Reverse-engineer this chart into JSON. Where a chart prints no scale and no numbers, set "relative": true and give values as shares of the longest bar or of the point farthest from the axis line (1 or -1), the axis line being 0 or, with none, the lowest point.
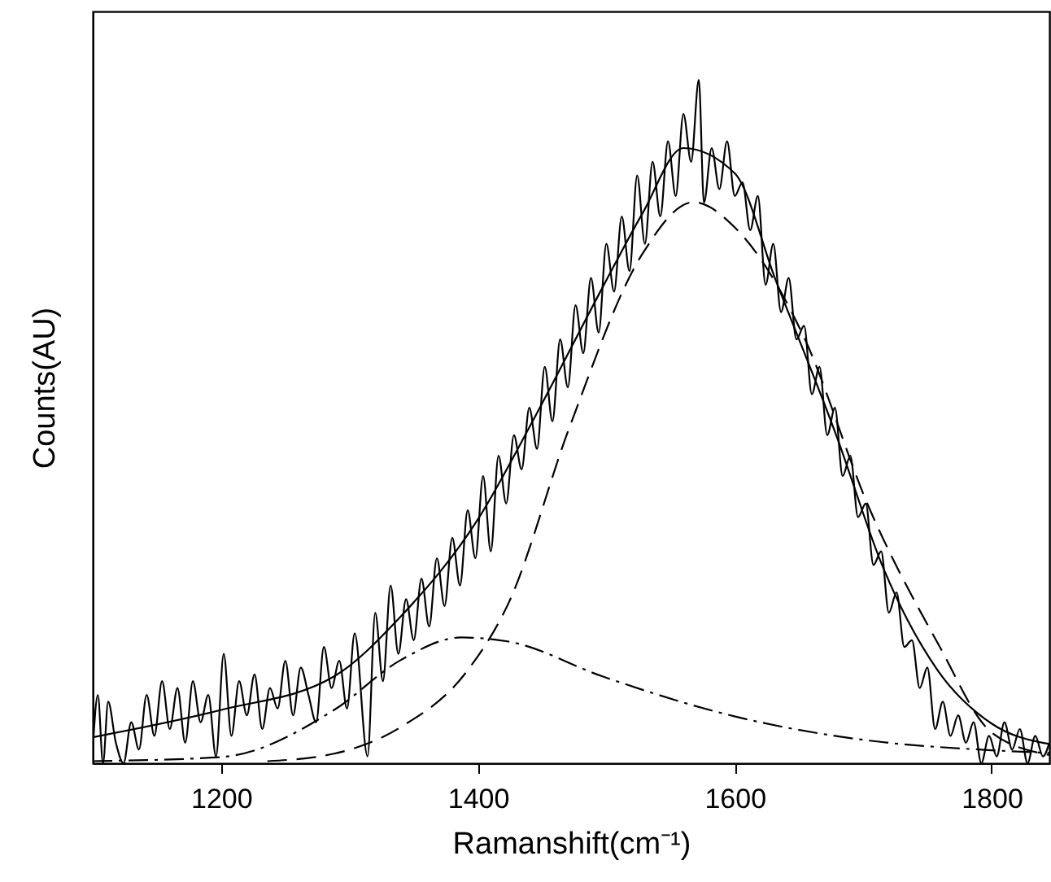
{
  "chart_data": {
    "type": "line",
    "relative": true,
    "xlabel": "Ramanshift(cm⁻¹)",
    "ylabel": "Counts(AU)",
    "xlim": [
      1100,
      1845
    ],
    "xticks": [
      1200,
      1400,
      1600,
      1800
    ],
    "grid": false,
    "marker": "none",
    "tick_labels": "x",
    "series": [
      {
        "color": "#000000",
        "line_style": "solid",
        "x": [
          1100,
          1104,
          1108,
          1112,
          1118,
          1124,
          1130,
          1136,
          1142,
          1148,
          1154,
          1160,
          1166,
          1172,
          1178,
          1184,
          1190,
          1196,
          1202,
          1208,
          1214,
          1220,
          1226,
          1232,
          1238,
          1244,
          1250,
          1256,
          1262,
          1268,
          1274,
          1280,
          1286,
          1292,
          1298,
          1304,
          1314,
          1320,
          1326,
          1332,
          1338,
          1344,
          1350,
          1356,
          1362,
          1368,
          1374,
          1380,
          1386,
          1392,
          1398,
          1404,
          1410,
          1416,
          1422,
          1428,
          1434,
          1440,
          1446,
          1452,
          1458,
          1464,
          1470,
          1476,
          1482,
          1488,
          1494,
          1500,
          1506,
          1512,
          1518,
          1524,
          1530,
          1536,
          1542,
          1548,
          1554,
          1560,
          1566,
          1572,
          1576,
          1582,
          1588,
          1594,
          1600,
          1606,
          1612,
          1618,
          1624,
          1630,
          1636,
          1642,
          1648,
          1654,
          1660,
          1666,
          1672,
          1678,
          1684,
          1690,
          1696,
          1702,
          1708,
          1714,
          1720,
          1726,
          1732,
          1738,
          1744,
          1750,
          1756,
          1762,
          1768,
          1774,
          1780,
          1786,
          1792,
          1798,
          1804,
          1810,
          1816,
          1822,
          1828,
          1834,
          1840,
          1845
        ],
        "values": [
          0.02,
          0.1,
          0.0,
          0.09,
          0.03,
          0.0,
          0.06,
          0.02,
          0.1,
          0.04,
          0.12,
          0.05,
          0.11,
          0.03,
          0.12,
          0.06,
          0.1,
          0.01,
          0.16,
          0.04,
          0.12,
          0.07,
          0.13,
          0.05,
          0.11,
          0.08,
          0.15,
          0.07,
          0.14,
          0.1,
          0.06,
          0.17,
          0.11,
          0.15,
          0.08,
          0.19,
          0.01,
          0.22,
          0.12,
          0.26,
          0.16,
          0.24,
          0.18,
          0.27,
          0.2,
          0.3,
          0.23,
          0.33,
          0.26,
          0.37,
          0.3,
          0.42,
          0.31,
          0.45,
          0.38,
          0.48,
          0.43,
          0.52,
          0.46,
          0.58,
          0.5,
          0.62,
          0.55,
          0.67,
          0.6,
          0.71,
          0.63,
          0.76,
          0.69,
          0.8,
          0.72,
          0.86,
          0.76,
          0.88,
          0.8,
          0.91,
          0.83,
          0.95,
          0.88,
          1.0,
          0.82,
          0.9,
          0.84,
          0.91,
          0.83,
          0.85,
          0.78,
          0.83,
          0.7,
          0.76,
          0.66,
          0.71,
          0.62,
          0.64,
          0.54,
          0.58,
          0.48,
          0.52,
          0.42,
          0.45,
          0.36,
          0.38,
          0.29,
          0.31,
          0.22,
          0.25,
          0.17,
          0.18,
          0.11,
          0.14,
          0.05,
          0.09,
          0.04,
          0.07,
          0.03,
          0.06,
          0.0,
          0.04,
          0.01,
          0.06,
          0.02,
          0.05,
          0.0,
          0.04,
          0.01,
          0.03
        ]
      },
      {
        "color": "#000000",
        "line_style": "solid",
        "x": [
          1100,
          1200,
          1288,
          1340,
          1400,
          1445,
          1497,
          1528,
          1560,
          1600,
          1632,
          1679,
          1716,
          1758,
          1800,
          1845
        ],
        "values": [
          0.038,
          0.078,
          0.127,
          0.215,
          0.357,
          0.509,
          0.696,
          0.804,
          0.9,
          0.863,
          0.706,
          0.48,
          0.284,
          0.136,
          0.058,
          0.028
        ]
      },
      {
        "color": "#000000",
        "line_style": "dashed",
        "x": [
          1236,
          1288,
          1340,
          1392,
          1424,
          1471,
          1528,
          1568,
          1600,
          1653,
          1705,
          1758,
          1800,
          1845
        ],
        "values": [
          0.003,
          0.014,
          0.053,
          0.136,
          0.235,
          0.49,
          0.745,
          0.821,
          0.784,
          0.627,
          0.372,
          0.176,
          0.045,
          0.012
        ]
      },
      {
        "color": "#000000",
        "line_style": "dashdot",
        "x": [
          1100,
          1200,
          1288,
          1340,
          1387,
          1424,
          1497,
          1601,
          1705,
          1800,
          1845
        ],
        "values": [
          0.003,
          0.009,
          0.078,
          0.151,
          0.184,
          0.178,
          0.127,
          0.068,
          0.033,
          0.019,
          0.015
        ]
      }
    ]
  }
}
